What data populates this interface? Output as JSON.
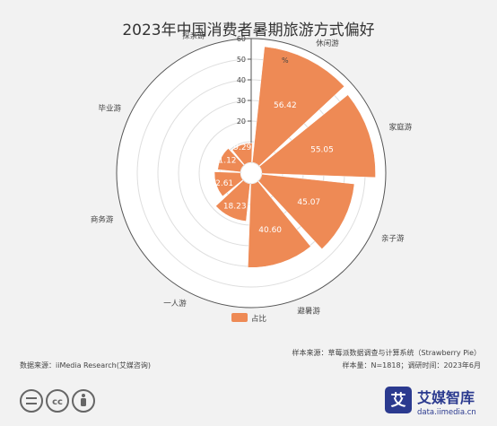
{
  "chart_data": {
    "type": "polar-bar",
    "title": "2023年中国消费者暑期旅游方式偏好",
    "unit": "%",
    "categories": [
      "休闲游",
      "家庭游",
      "亲子游",
      "避暑游",
      "一人游",
      "商务游",
      "毕业游",
      "探亲游"
    ],
    "values": [
      56.42,
      55.05,
      45.07,
      40.6,
      18.23,
      12.61,
      11.12,
      9.29
    ],
    "value_labels": [
      "56.42",
      "55.05",
      "45.07",
      "40.60",
      "18.23",
      "12.61",
      "11.12",
      "9.29"
    ],
    "radial_ticks": [
      "20",
      "30",
      "40",
      "50",
      "60"
    ],
    "radial_max": 60,
    "legend": [
      "占比"
    ],
    "legend_position": "bottom",
    "bar_color": "#ee8a55"
  },
  "footer": {
    "source_left": "数据来源：iiMedia Research(艾媒咨询)",
    "source_right": "样本来源：草莓派数据调查与计算系统（Strawberry Pie）",
    "sample": "样本量：N=1818；调研时间：2023年6月"
  },
  "brand": {
    "name_cn": "艾媒智库",
    "url": "data.iimedia.cn",
    "logo_char": "艾"
  },
  "license_icons": [
    "equals-icon",
    "cc-icon",
    "person-icon"
  ]
}
